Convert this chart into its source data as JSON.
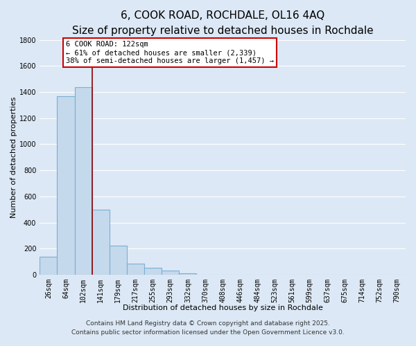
{
  "title": "6, COOK ROAD, ROCHDALE, OL16 4AQ",
  "subtitle": "Size of property relative to detached houses in Rochdale",
  "xlabel": "Distribution of detached houses by size in Rochdale",
  "ylabel": "Number of detached properties",
  "bar_labels": [
    "26sqm",
    "64sqm",
    "102sqm",
    "141sqm",
    "179sqm",
    "217sqm",
    "255sqm",
    "293sqm",
    "332sqm",
    "370sqm",
    "408sqm",
    "446sqm",
    "484sqm",
    "523sqm",
    "561sqm",
    "599sqm",
    "637sqm",
    "675sqm",
    "714sqm",
    "752sqm",
    "790sqm"
  ],
  "bar_values": [
    140,
    1370,
    1435,
    500,
    225,
    85,
    55,
    30,
    10,
    0,
    0,
    0,
    0,
    0,
    0,
    0,
    0,
    0,
    0,
    0,
    0
  ],
  "bar_color": "#c5d9ec",
  "bar_edgecolor": "#7aafd4",
  "ylim": [
    0,
    1800
  ],
  "yticks": [
    0,
    200,
    400,
    600,
    800,
    1000,
    1200,
    1400,
    1600,
    1800
  ],
  "vline_color": "#8b0000",
  "annotation_line1": "6 COOK ROAD: 122sqm",
  "annotation_line2": "← 61% of detached houses are smaller (2,339)",
  "annotation_line3": "38% of semi-detached houses are larger (1,457) →",
  "annotation_box_facecolor": "#ffffff",
  "annotation_box_edgecolor": "#cc0000",
  "footer1": "Contains HM Land Registry data © Crown copyright and database right 2025.",
  "footer2": "Contains public sector information licensed under the Open Government Licence v3.0.",
  "bg_color": "#dce8f5",
  "plot_bg_color": "#dce8f5",
  "grid_color": "#ffffff",
  "title_fontsize": 11,
  "subtitle_fontsize": 9,
  "axis_label_fontsize": 8,
  "tick_fontsize": 7,
  "annotation_fontsize": 7.5,
  "footer_fontsize": 6.5
}
